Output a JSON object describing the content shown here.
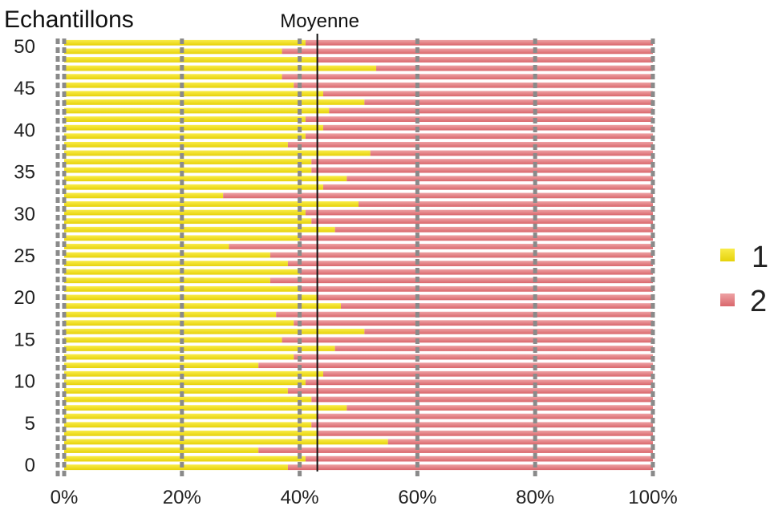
{
  "chart_data": {
    "type": "bar",
    "orientation": "horizontal",
    "stacked": true,
    "percent": true,
    "title": "Echantillons",
    "y_ticks": [
      "0",
      "5",
      "10",
      "15",
      "20",
      "25",
      "30",
      "35",
      "40",
      "45",
      "50"
    ],
    "x_ticks": [
      "0%",
      "20%",
      "40%",
      "60%",
      "80%",
      "100%"
    ],
    "xlim": [
      0,
      100
    ],
    "ylim": [
      0,
      50
    ],
    "grid": true,
    "mean_label": "Moyenne",
    "mean_value": 43,
    "legend_position": "right",
    "series": [
      {
        "name": "1",
        "color": "#f5e31a",
        "values": [
          38,
          41,
          33,
          55,
          43,
          42,
          43,
          48,
          42,
          38,
          41,
          44,
          33,
          39,
          46,
          37,
          51,
          39,
          36,
          47,
          43,
          40,
          35,
          40,
          38,
          35,
          28,
          40,
          46,
          42,
          41,
          50,
          27,
          44,
          48,
          42,
          42,
          52,
          38,
          41,
          44,
          41,
          45,
          51,
          44,
          39,
          37,
          53,
          43,
          37,
          41
        ]
      },
      {
        "name": "2",
        "color": "#e07e82",
        "values": [
          62,
          59,
          67,
          45,
          57,
          58,
          57,
          52,
          58,
          62,
          59,
          56,
          67,
          61,
          54,
          63,
          49,
          61,
          64,
          53,
          57,
          60,
          65,
          60,
          62,
          65,
          72,
          60,
          54,
          58,
          59,
          50,
          73,
          56,
          52,
          58,
          58,
          48,
          62,
          59,
          56,
          59,
          55,
          49,
          56,
          61,
          63,
          47,
          57,
          63,
          59
        ]
      }
    ]
  }
}
